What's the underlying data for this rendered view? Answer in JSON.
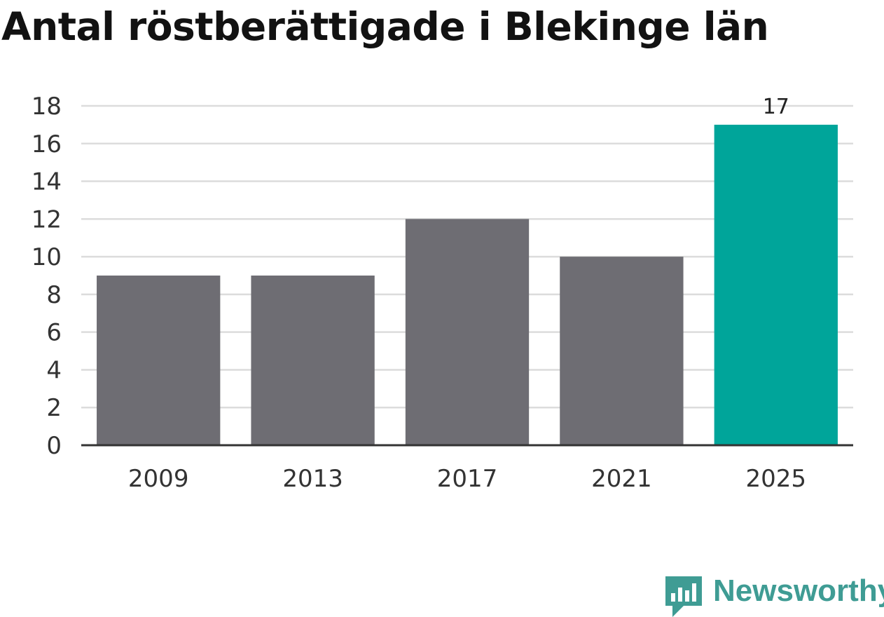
{
  "chart_data": {
    "type": "bar",
    "title": "Antal röstberättigade i Blekinge län",
    "categories": [
      "2009",
      "2013",
      "2017",
      "2021",
      "2025"
    ],
    "values": [
      9,
      9,
      12,
      10,
      17
    ],
    "bar_colors": [
      "#6e6d73",
      "#6e6d73",
      "#6e6d73",
      "#6e6d73",
      "#00a59a"
    ],
    "data_labels": [
      "",
      "",
      "",
      "",
      "17"
    ],
    "ylim": [
      0,
      18
    ],
    "yticks": [
      0,
      2,
      4,
      6,
      8,
      10,
      12,
      14,
      16,
      18
    ],
    "grid": true,
    "legend": "none",
    "xlabel": "",
    "ylabel": ""
  },
  "branding": {
    "name": "Newsworthy",
    "icon": "newsworthy-logo-icon",
    "color": "#3f9c94"
  }
}
